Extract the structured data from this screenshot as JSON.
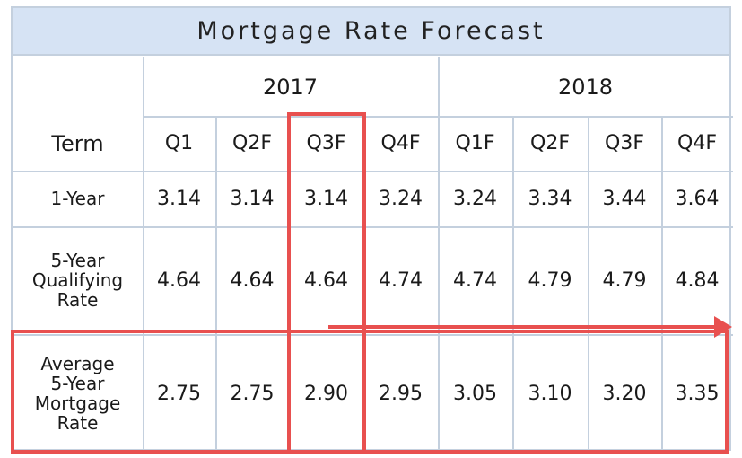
{
  "title": "Mortgage Rate Forecast",
  "chart_data": {
    "type": "table",
    "title": "Mortgage Rate Forecast",
    "years": [
      {
        "label": "2017",
        "span": 4
      },
      {
        "label": "2018",
        "span": 4
      }
    ],
    "header_label": "Term",
    "columns": [
      "Q1",
      "Q2F",
      "Q3F",
      "Q4F",
      "Q1F",
      "Q2F",
      "Q3F",
      "Q4F"
    ],
    "rows": [
      {
        "label": "1-Year",
        "values": [
          "3.14",
          "3.14",
          "3.14",
          "3.24",
          "3.24",
          "3.34",
          "3.44",
          "3.64"
        ]
      },
      {
        "label": "5-Year\nQualifying\nRate",
        "values": [
          "4.64",
          "4.64",
          "4.64",
          "4.74",
          "4.74",
          "4.79",
          "4.79",
          "4.84"
        ]
      },
      {
        "label": "Average\n5-Year\nMortgage\nRate",
        "values": [
          "2.75",
          "2.75",
          "2.90",
          "2.95",
          "3.05",
          "3.10",
          "3.20",
          "3.35"
        ]
      }
    ],
    "highlights": {
      "column": "Q3F",
      "row": "Average 5-Year Mortgage Rate",
      "color": "#e8504f"
    }
  },
  "colors": {
    "header_bg": "#d6e3f4",
    "grid": "#c4d0de",
    "highlight": "#e8504f"
  }
}
